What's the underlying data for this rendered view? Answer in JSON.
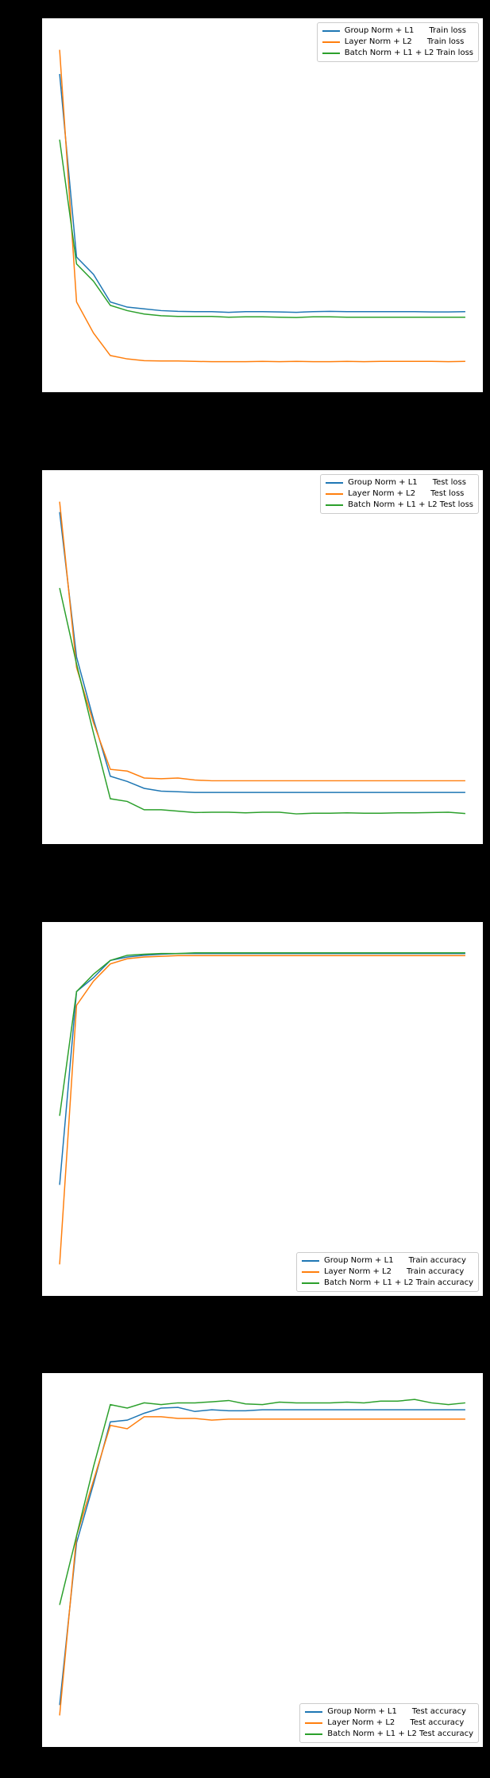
{
  "colors": {
    "blue": "#1f77b4",
    "orange": "#ff7f0e",
    "green": "#2ca02c"
  },
  "chart_data": [
    {
      "type": "line",
      "title": "",
      "xlabel": "",
      "ylabel": "",
      "grid": false,
      "legend_position": "top-right",
      "x": [
        0,
        1,
        2,
        3,
        4,
        5,
        6,
        7,
        8,
        9,
        10,
        11,
        12,
        13,
        14,
        15,
        16,
        17,
        18,
        19,
        20,
        21,
        22,
        23,
        24
      ],
      "ylim": [
        0,
        1
      ],
      "series": [
        {
          "name": "Group Norm + L1      Train loss",
          "color": "blue",
          "values": [
            0.88,
            0.35,
            0.3,
            0.22,
            0.205,
            0.2,
            0.195,
            0.193,
            0.192,
            0.192,
            0.19,
            0.192,
            0.192,
            0.191,
            0.19,
            0.192,
            0.193,
            0.192,
            0.192,
            0.192,
            0.192,
            0.192,
            0.191,
            0.191,
            0.192
          ]
        },
        {
          "name": "Layer Norm + L2      Train loss",
          "color": "orange",
          "values": [
            0.95,
            0.22,
            0.13,
            0.065,
            0.055,
            0.05,
            0.049,
            0.049,
            0.048,
            0.047,
            0.047,
            0.047,
            0.048,
            0.047,
            0.048,
            0.047,
            0.047,
            0.048,
            0.047,
            0.048,
            0.048,
            0.048,
            0.048,
            0.047,
            0.048
          ]
        },
        {
          "name": "Batch Norm + L1 + L2 Train loss",
          "color": "green",
          "values": [
            0.69,
            0.33,
            0.28,
            0.21,
            0.195,
            0.185,
            0.18,
            0.178,
            0.178,
            0.178,
            0.176,
            0.177,
            0.177,
            0.176,
            0.175,
            0.177,
            0.177,
            0.176,
            0.176,
            0.176,
            0.176,
            0.176,
            0.176,
            0.176,
            0.176
          ]
        }
      ]
    },
    {
      "type": "line",
      "title": "",
      "xlabel": "",
      "ylabel": "",
      "grid": false,
      "legend_position": "top-right",
      "x": [
        0,
        1,
        2,
        3,
        4,
        5,
        6,
        7,
        8,
        9,
        10,
        11,
        12,
        13,
        14,
        15,
        16,
        17,
        18,
        19,
        20,
        21,
        22,
        23,
        24
      ],
      "ylim": [
        0,
        1
      ],
      "series": [
        {
          "name": "Group Norm + L1      Test loss",
          "color": "blue",
          "values": [
            0.92,
            0.5,
            0.32,
            0.155,
            0.14,
            0.12,
            0.112,
            0.11,
            0.108,
            0.108,
            0.108,
            0.108,
            0.108,
            0.108,
            0.108,
            0.108,
            0.108,
            0.108,
            0.108,
            0.108,
            0.108,
            0.108,
            0.108,
            0.108,
            0.108
          ]
        },
        {
          "name": "Layer Norm + L2      Test loss",
          "color": "orange",
          "values": [
            0.95,
            0.47,
            0.31,
            0.175,
            0.17,
            0.15,
            0.148,
            0.15,
            0.144,
            0.142,
            0.142,
            0.142,
            0.142,
            0.142,
            0.142,
            0.142,
            0.142,
            0.142,
            0.142,
            0.142,
            0.142,
            0.142,
            0.142,
            0.142,
            0.142
          ]
        },
        {
          "name": "Batch Norm + L1 + L2 Test loss",
          "color": "green",
          "values": [
            0.7,
            0.48,
            0.28,
            0.09,
            0.082,
            0.058,
            0.058,
            0.054,
            0.05,
            0.051,
            0.051,
            0.049,
            0.051,
            0.051,
            0.046,
            0.048,
            0.048,
            0.049,
            0.048,
            0.048,
            0.049,
            0.049,
            0.05,
            0.051,
            0.047
          ]
        }
      ]
    },
    {
      "type": "line",
      "title": "",
      "xlabel": "",
      "ylabel": "",
      "grid": false,
      "legend_position": "bottom-right",
      "x": [
        0,
        1,
        2,
        3,
        4,
        5,
        6,
        7,
        8,
        9,
        10,
        11,
        12,
        13,
        14,
        15,
        16,
        17,
        18,
        19,
        20,
        21,
        22,
        23,
        24
      ],
      "ylim": [
        0,
        1
      ],
      "series": [
        {
          "name": "Group Norm + L1      Train accuracy",
          "color": "blue",
          "values": [
            0.28,
            0.84,
            0.88,
            0.93,
            0.94,
            0.945,
            0.948,
            0.95,
            0.95,
            0.95,
            0.95,
            0.95,
            0.95,
            0.95,
            0.95,
            0.95,
            0.95,
            0.95,
            0.95,
            0.95,
            0.95,
            0.95,
            0.95,
            0.95,
            0.95
          ]
        },
        {
          "name": "Layer Norm + L2      Train accuracy",
          "color": "orange",
          "values": [
            0.05,
            0.8,
            0.87,
            0.92,
            0.935,
            0.94,
            0.942,
            0.944,
            0.944,
            0.944,
            0.944,
            0.944,
            0.944,
            0.944,
            0.944,
            0.944,
            0.944,
            0.944,
            0.944,
            0.944,
            0.944,
            0.944,
            0.944,
            0.944,
            0.944
          ]
        },
        {
          "name": "Batch Norm + L1 + L2 Train accuracy",
          "color": "green",
          "values": [
            0.48,
            0.84,
            0.89,
            0.93,
            0.945,
            0.948,
            0.95,
            0.95,
            0.952,
            0.952,
            0.952,
            0.952,
            0.952,
            0.952,
            0.952,
            0.952,
            0.952,
            0.952,
            0.952,
            0.952,
            0.952,
            0.952,
            0.952,
            0.952,
            0.952
          ]
        }
      ]
    },
    {
      "type": "line",
      "title": "",
      "xlabel": "",
      "ylabel": "",
      "grid": false,
      "legend_position": "bottom-right",
      "x": [
        0,
        1,
        2,
        3,
        4,
        5,
        6,
        7,
        8,
        9,
        10,
        11,
        12,
        13,
        14,
        15,
        16,
        17,
        18,
        19,
        20,
        21,
        22,
        23,
        24
      ],
      "ylim": [
        0,
        1
      ],
      "series": [
        {
          "name": "Group Norm + L1      Test accuracy",
          "color": "blue",
          "values": [
            0.08,
            0.55,
            0.72,
            0.9,
            0.905,
            0.925,
            0.94,
            0.942,
            0.93,
            0.935,
            0.932,
            0.932,
            0.935,
            0.935,
            0.935,
            0.935,
            0.935,
            0.935,
            0.935,
            0.935,
            0.935,
            0.935,
            0.935,
            0.935,
            0.935
          ]
        },
        {
          "name": "Layer Norm + L2      Test accuracy",
          "color": "orange",
          "values": [
            0.05,
            0.57,
            0.73,
            0.89,
            0.88,
            0.915,
            0.915,
            0.91,
            0.91,
            0.905,
            0.908,
            0.908,
            0.908,
            0.908,
            0.908,
            0.908,
            0.908,
            0.908,
            0.908,
            0.908,
            0.908,
            0.908,
            0.908,
            0.908,
            0.908
          ]
        },
        {
          "name": "Batch Norm + L1 + L2 Test accuracy",
          "color": "green",
          "values": [
            0.37,
            0.57,
            0.77,
            0.95,
            0.94,
            0.955,
            0.95,
            0.955,
            0.955,
            0.958,
            0.962,
            0.952,
            0.95,
            0.957,
            0.955,
            0.955,
            0.955,
            0.957,
            0.955,
            0.96,
            0.96,
            0.965,
            0.955,
            0.95,
            0.955
          ]
        }
      ]
    }
  ]
}
